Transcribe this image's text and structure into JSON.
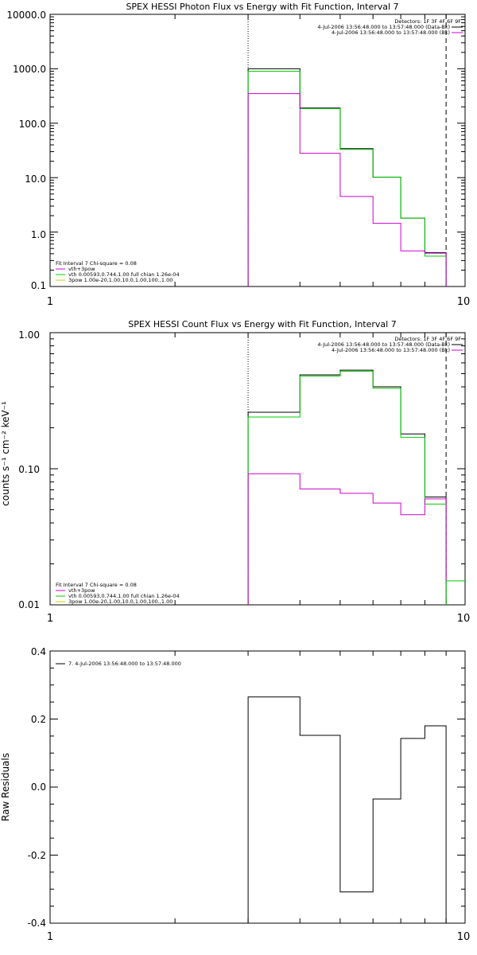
{
  "chart_data": [
    {
      "type": "line",
      "title": "SPEX HESSI Photon Flux vs Energy with Fit Function, Interval 7",
      "xlabel": "",
      "ylabel": "",
      "xscale": "log",
      "yscale": "log",
      "xlim": [
        1,
        10
      ],
      "ylim": [
        0.1,
        10000
      ],
      "x_ticks": [
        "1",
        "10"
      ],
      "y_ticks": [
        "0.1",
        "1.0",
        "10.0",
        "100.0",
        "1000.0",
        "10000.0"
      ],
      "vlines": [
        {
          "x": 3,
          "style": "dotted"
        },
        {
          "x": 9,
          "style": "dashed"
        }
      ],
      "header_text": {
        "detectors": "Detectors: 1F 3F 4F 6F 9F",
        "entries": [
          {
            "label": "4-Jul-2006 13:56:48.000 to 13:57:48.000 (Data-Bk)",
            "color": "#000000"
          },
          {
            "label": "4-Jul-2006 13:56:48.000 to 13:57:48.000 (Bk)",
            "color": "#cc00cc"
          }
        ]
      },
      "fit_text": {
        "header": "Fit Interval 7   Chi-square = 0.08",
        "entries": [
          {
            "label": "vth+3pow",
            "color": "#cc00cc"
          },
          {
            "label": "vth 0.00593,0.744,1.00   full chian 1.26e-04",
            "color": "#00cc00"
          },
          {
            "label": "3pow 1.00e-20,1.00,10.0,1.00,100.,1.00",
            "color": "#cccc00"
          }
        ]
      },
      "edges": [
        3,
        4,
        5,
        6,
        7,
        8,
        9
      ],
      "series": [
        {
          "color": "#000000",
          "values": [
            1000,
            190,
            34,
            10.2,
            1.8,
            0.42
          ]
        },
        {
          "color": "#00cc00",
          "values": [
            900,
            185,
            33,
            10.2,
            1.8,
            0.36
          ]
        },
        {
          "color": "#cc00cc",
          "values": [
            350,
            28,
            4.5,
            1.45,
            0.45,
            0.41
          ]
        }
      ]
    },
    {
      "type": "line",
      "title": "SPEX HESSI Count Flux vs Energy with Fit Function, Interval 7",
      "xlabel": "",
      "ylabel": "counts s⁻¹ cm⁻² keV⁻¹",
      "xscale": "log",
      "yscale": "log",
      "xlim": [
        1,
        10
      ],
      "ylim": [
        0.01,
        1.0
      ],
      "x_ticks": [
        "1",
        "10"
      ],
      "y_ticks": [
        "0.01",
        "0.10",
        "1.00"
      ],
      "vlines": [
        {
          "x": 3,
          "style": "dotted"
        },
        {
          "x": 9,
          "style": "dashed"
        }
      ],
      "header_text": {
        "detectors": "Detectors: 1F 3F 4F 6F 9F",
        "entries": [
          {
            "label": "4-Jul-2006 13:56:48.000 to 13:57:48.000 (Data-Bk)",
            "color": "#000000"
          },
          {
            "label": "4-Jul-2006 13:56:48.000 to 13:57:48.000 (Bk)",
            "color": "#cc00cc"
          }
        ]
      },
      "fit_text": {
        "header": "Fit Interval 7   Chi-square = 0.08",
        "entries": [
          {
            "label": "vth+3pow",
            "color": "#cc00cc"
          },
          {
            "label": "vth 0.00593,0.744,1.00   full chian 1.26e-04",
            "color": "#00cc00"
          },
          {
            "label": "3pow 1.00e-20,1.00,10.0,1.00,100.,1.00",
            "color": "#cccc00"
          }
        ]
      },
      "edges": [
        3,
        4,
        5,
        6,
        7,
        8,
        9
      ],
      "series": [
        {
          "color": "#000000",
          "values": [
            0.26,
            0.49,
            0.53,
            0.4,
            0.18,
            0.062
          ]
        },
        {
          "color": "#00cc00",
          "values": [
            0.24,
            0.48,
            0.52,
            0.39,
            0.17,
            0.055
          ]
        },
        {
          "color": "#cc00cc",
          "values": [
            0.092,
            0.071,
            0.066,
            0.056,
            0.046,
            0.06
          ]
        }
      ],
      "tail": {
        "color": "#00cc00",
        "x": [
          9,
          10
        ],
        "value": 0.015
      }
    },
    {
      "type": "line",
      "title": "",
      "xlabel": "",
      "ylabel": "Raw Residuals",
      "xscale": "log",
      "yscale": "linear",
      "xlim": [
        1,
        10
      ],
      "ylim": [
        -0.4,
        0.4
      ],
      "x_ticks": [
        "1",
        "10"
      ],
      "y_ticks": [
        "-0.4",
        "-0.2",
        "0.0",
        "0.2",
        "0.4"
      ],
      "legend": {
        "label": "7.  4-Jul-2006 13:56:48.000 to 13:57:48.000"
      },
      "edges": [
        3,
        4,
        5,
        6,
        7,
        8,
        9
      ],
      "series": [
        {
          "color": "#000000",
          "values": [
            0.265,
            0.152,
            -0.308,
            -0.035,
            0.143,
            0.18
          ]
        }
      ]
    }
  ]
}
